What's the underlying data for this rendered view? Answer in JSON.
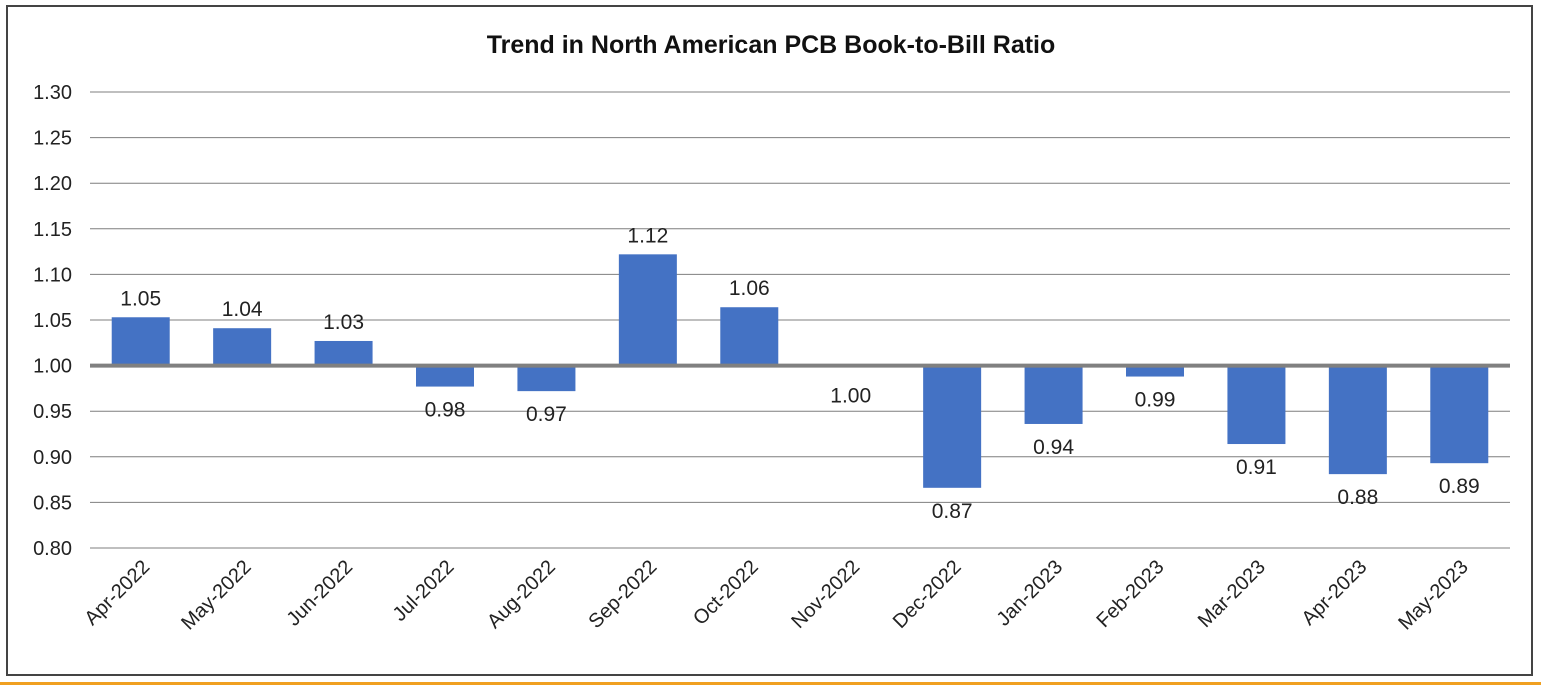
{
  "chart_data": {
    "type": "bar",
    "title": "Trend in North American PCB Book-to-Bill Ratio",
    "xlabel": "",
    "ylabel": "",
    "baseline": 1.0,
    "ylim": [
      0.8,
      1.3
    ],
    "yticks": [
      "1.30",
      "1.25",
      "1.20",
      "1.15",
      "1.10",
      "1.05",
      "1.00",
      "0.95",
      "0.90",
      "0.85",
      "0.80"
    ],
    "categories": [
      "Apr-2022",
      "May-2022",
      "Jun-2022",
      "Jul-2022",
      "Aug-2022",
      "Sep-2022",
      "Oct-2022",
      "Nov-2022",
      "Dec-2022",
      "Jan-2023",
      "Feb-2023",
      "Mar-2023",
      "Apr-2023",
      "May-2023"
    ],
    "values": [
      1.053,
      1.041,
      1.027,
      0.977,
      0.972,
      1.122,
      1.064,
      1.0,
      0.866,
      0.936,
      0.988,
      0.914,
      0.881,
      0.893
    ],
    "data_labels": [
      "1.05",
      "1.04",
      "1.03",
      "0.98",
      "0.97",
      "1.12",
      "1.06",
      "1.00",
      "0.87",
      "0.94",
      "0.99",
      "0.91",
      "0.88",
      "0.89"
    ],
    "grid": true,
    "bar_color": "#4472c4",
    "gridline_color": "#7f7f7f",
    "baseline_color": "#808080"
  }
}
